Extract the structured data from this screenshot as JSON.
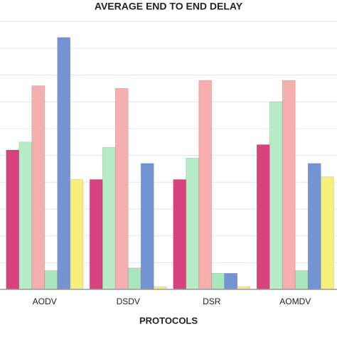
{
  "chart_data": {
    "type": "bar",
    "title": "AVERAGE END TO END DELAY",
    "x_label": "PROTOCOLS",
    "categories": [
      "AODV",
      "DSDV",
      "DSR",
      "AOMDV"
    ],
    "series": [
      {
        "color": "#d9417f",
        "values": [
          5.2,
          4.1,
          4.1,
          5.4
        ]
      },
      {
        "color": "#b8ecc8",
        "values": [
          5.5,
          5.3,
          4.9,
          7.0
        ]
      },
      {
        "color": "#f7aeae",
        "values": [
          7.6,
          7.5,
          7.8,
          7.8
        ]
      },
      {
        "color": "#a9e6bd",
        "values": [
          0.7,
          0.8,
          0.6,
          0.7
        ]
      },
      {
        "color": "#7393d3",
        "values": [
          9.4,
          4.7,
          0.6,
          4.7
        ]
      },
      {
        "color": "#f6ef7c",
        "values": [
          4.1,
          0.1,
          0.1,
          4.2
        ]
      }
    ],
    "ylim": [
      0,
      10.8
    ],
    "gridlines": [
      1,
      2,
      3,
      4,
      5,
      6,
      7,
      8,
      9,
      10
    ],
    "grid": true
  }
}
